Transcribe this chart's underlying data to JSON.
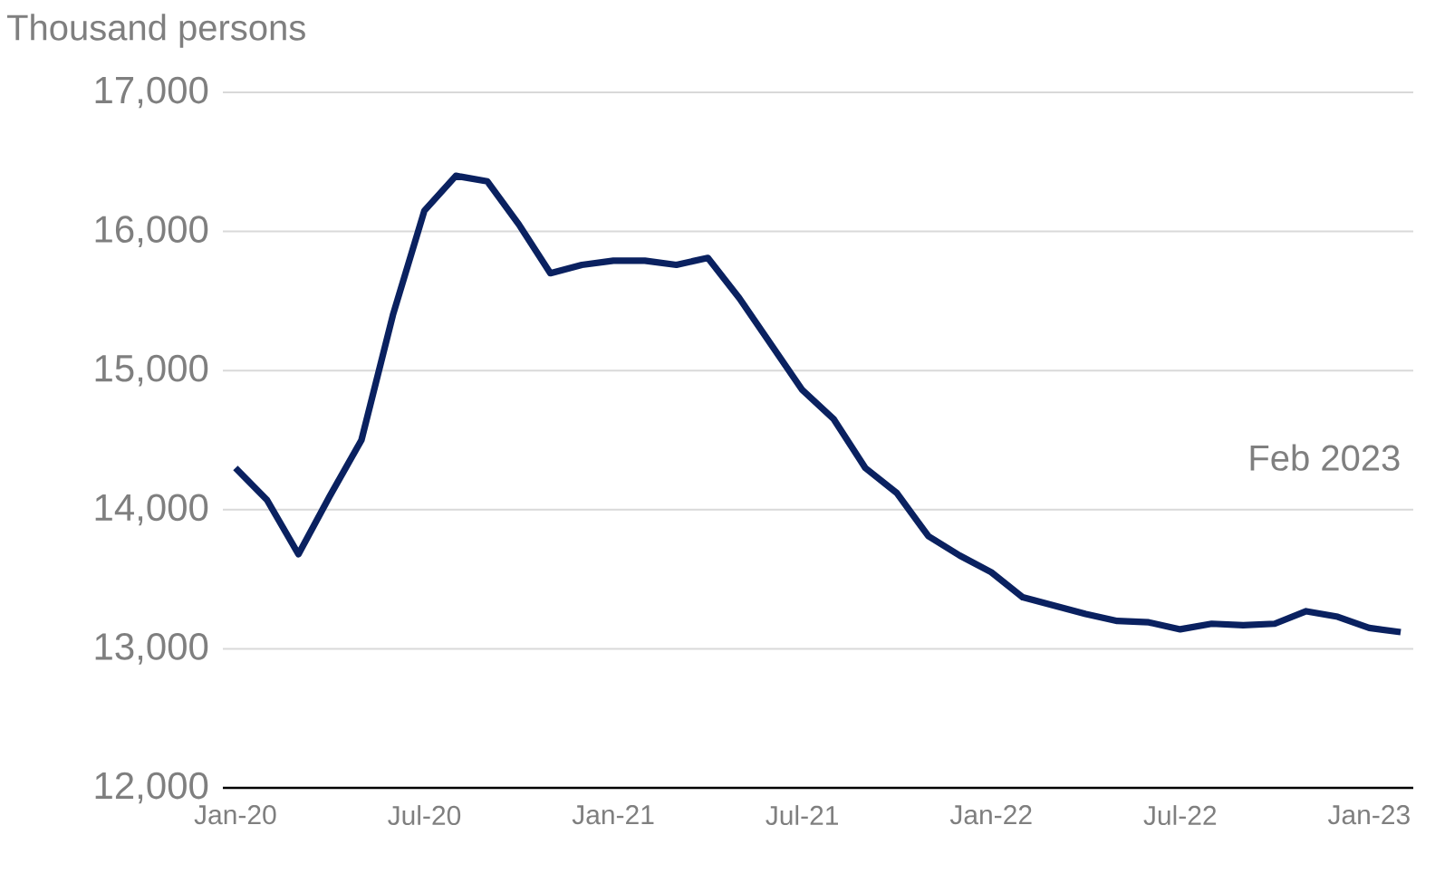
{
  "chart_data": {
    "type": "line",
    "ylabel": "Thousand persons",
    "categories": [
      "Jan-20",
      null,
      null,
      null,
      null,
      null,
      "Jul-20",
      null,
      null,
      null,
      null,
      null,
      "Jan-21",
      null,
      null,
      null,
      null,
      null,
      "Jul-21",
      null,
      null,
      null,
      null,
      null,
      "Jan-22",
      null,
      null,
      null,
      null,
      null,
      "Jul-22",
      null,
      null,
      null,
      null,
      null,
      "Jan-23",
      null
    ],
    "series": [
      {
        "color": "#0a2160",
        "values": [
          14300,
          14070,
          13680,
          14100,
          14500,
          15400,
          16150,
          16400,
          16360,
          16050,
          15700,
          15760,
          15790,
          15790,
          15760,
          15810,
          15520,
          15190,
          14860,
          14650,
          14300,
          14120,
          13810,
          13670,
          13550,
          13370,
          13310,
          13250,
          13200,
          13190,
          13140,
          13180,
          13170,
          13180,
          13270,
          13230,
          13150,
          13120
        ]
      }
    ],
    "ylim": [
      12000,
      17000
    ],
    "yticks": [
      {
        "value": 12000,
        "label": "12,000"
      },
      {
        "value": 13000,
        "label": "13,000"
      },
      {
        "value": 14000,
        "label": "14,000"
      },
      {
        "value": 15000,
        "label": "15,000"
      },
      {
        "value": 16000,
        "label": "16,000"
      },
      {
        "value": 17000,
        "label": "17,000"
      }
    ],
    "grid": "y",
    "line_style": "solid",
    "annotations": [
      "Feb 2023"
    ]
  }
}
